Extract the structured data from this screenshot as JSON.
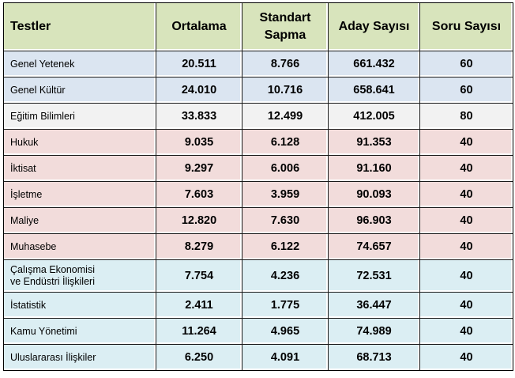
{
  "table": {
    "headers": {
      "col1": "Testler",
      "col2": "Ortalama",
      "col3_line1": "Standart",
      "col3_line2": "Sapma",
      "col4": "Aday Sayısı",
      "col5": "Soru Sayısı"
    },
    "rows": [
      {
        "name": "Genel Yetenek",
        "mean": "20.511",
        "sd": "8.766",
        "candidates": "661.432",
        "questions": "60",
        "group": "blue"
      },
      {
        "name": "Genel Kültür",
        "mean": "24.010",
        "sd": "10.716",
        "candidates": "658.641",
        "questions": "60",
        "group": "blue"
      },
      {
        "name": "Eğitim Bilimleri",
        "mean": "33.833",
        "sd": "12.499",
        "candidates": "412.005",
        "questions": "80",
        "group": "gray"
      },
      {
        "name": "Hukuk",
        "mean": "9.035",
        "sd": "6.128",
        "candidates": "91.353",
        "questions": "40",
        "group": "pink"
      },
      {
        "name": "İktisat",
        "mean": "9.297",
        "sd": "6.006",
        "candidates": "91.160",
        "questions": "40",
        "group": "pink"
      },
      {
        "name": "İşletme",
        "mean": "7.603",
        "sd": "3.959",
        "candidates": "90.093",
        "questions": "40",
        "group": "pink"
      },
      {
        "name": "Maliye",
        "mean": "12.820",
        "sd": "7.630",
        "candidates": "96.903",
        "questions": "40",
        "group": "pink"
      },
      {
        "name": "Muhasebe",
        "mean": "8.279",
        "sd": "6.122",
        "candidates": "74.657",
        "questions": "40",
        "group": "pink"
      },
      {
        "name_line1": "Çalışma Ekonomisi",
        "name_line2": "ve Endüstri İlişkileri",
        "mean": "7.754",
        "sd": "4.236",
        "candidates": "72.531",
        "questions": "40",
        "group": "cyan"
      },
      {
        "name": "İstatistik",
        "mean": "2.411",
        "sd": "1.775",
        "candidates": "36.447",
        "questions": "40",
        "group": "cyan"
      },
      {
        "name": "Kamu Yönetimi",
        "mean": "11.264",
        "sd": "4.965",
        "candidates": "74.989",
        "questions": "40",
        "group": "cyan"
      },
      {
        "name": "Uluslararası İlişkiler",
        "mean": "6.250",
        "sd": "4.091",
        "candidates": "68.713",
        "questions": "40",
        "group": "cyan"
      }
    ]
  },
  "colors": {
    "header": "#d8e4bc",
    "blue": "#dbe5f1",
    "gray": "#f2f2f2",
    "pink": "#f2dcdb",
    "cyan": "#dbeef3"
  }
}
